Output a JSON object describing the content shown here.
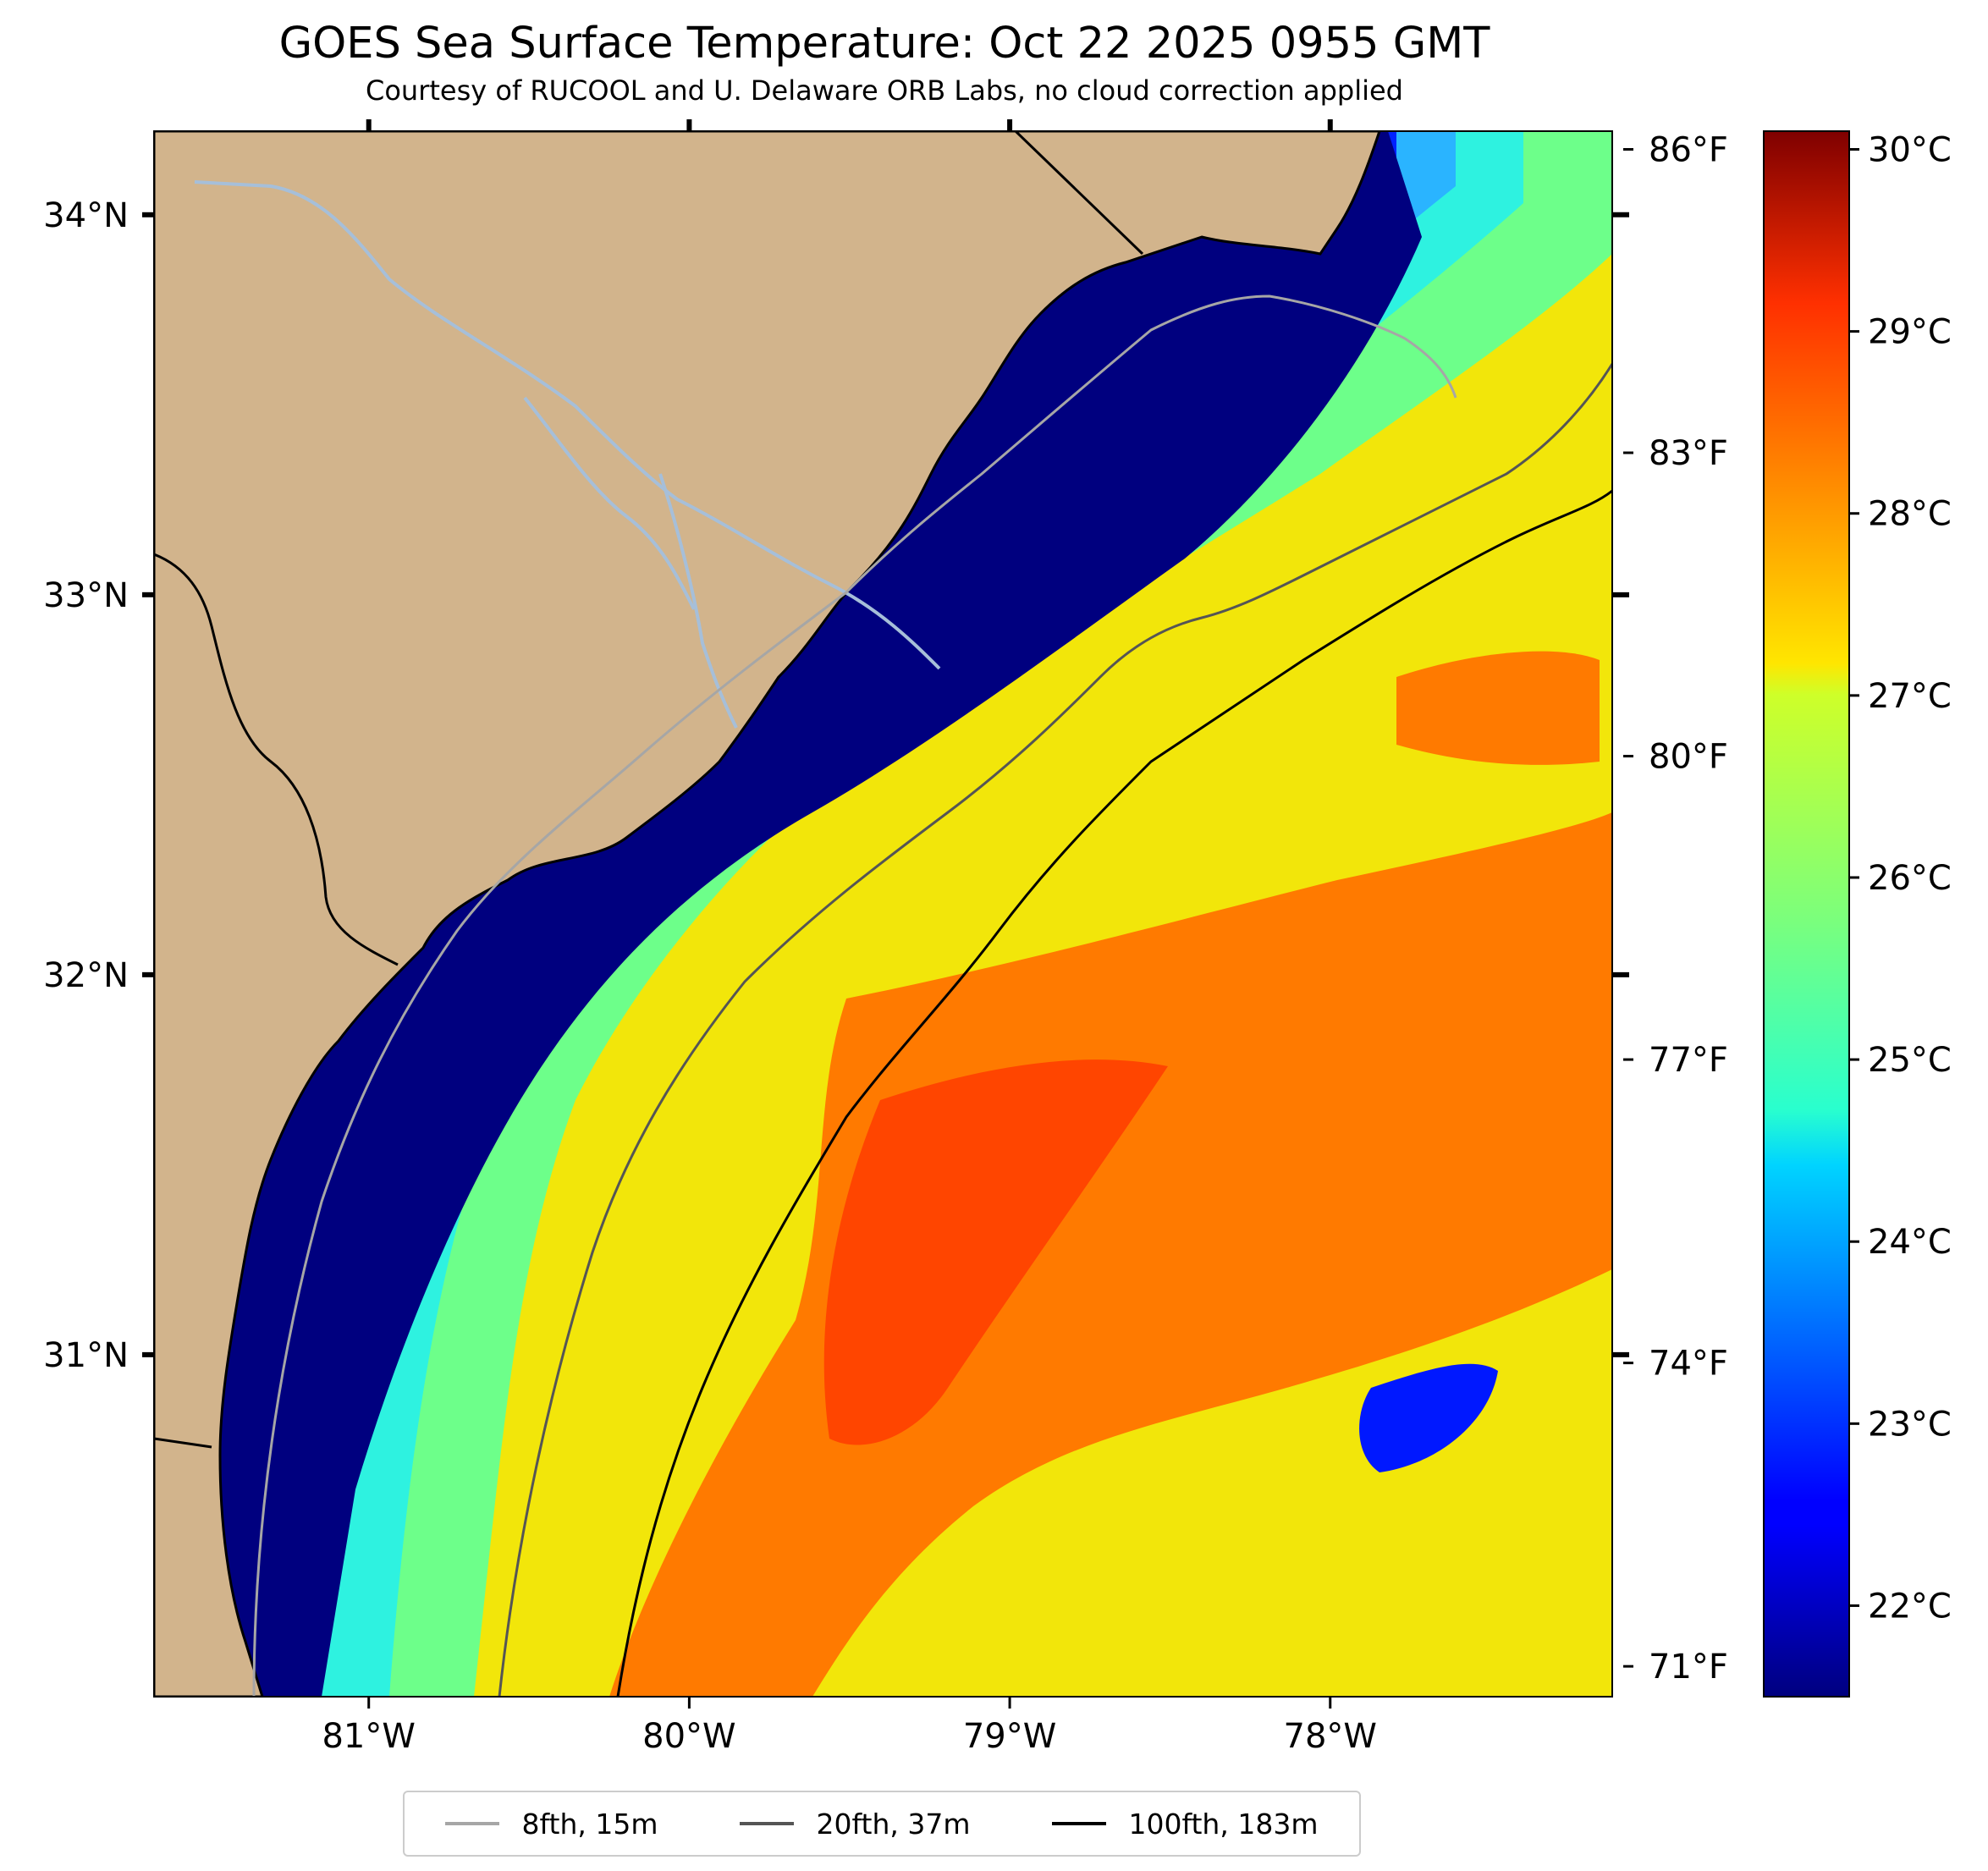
{
  "title": "GOES Sea Surface Temperature: Oct 22 2025 0955 GMT",
  "subtitle": "Courtesy of RUCOOL and U. Delaware ORB Labs, no cloud correction applied",
  "map": {
    "lon_range": [
      -81.67,
      -77.12
    ],
    "lat_range": [
      30.1,
      34.22
    ],
    "lon_ticks": [
      {
        "value": -81,
        "label": "81°W"
      },
      {
        "value": -80,
        "label": "80°W"
      },
      {
        "value": -79,
        "label": "79°W"
      },
      {
        "value": -78,
        "label": "78°W"
      }
    ],
    "lat_ticks": [
      {
        "value": 34,
        "label": "34°N"
      },
      {
        "value": 33,
        "label": "33°N"
      },
      {
        "value": 32,
        "label": "32°N"
      },
      {
        "value": 31,
        "label": "31°N"
      }
    ],
    "land_color": "#d2b48c",
    "coast_color": "#000000",
    "river_color": "#a6bfd9",
    "colormap": "jet"
  },
  "fahrenheit_ticks": [
    {
      "value": 86,
      "label": "86°F"
    },
    {
      "value": 83,
      "label": "83°F"
    },
    {
      "value": 80,
      "label": "80°F"
    },
    {
      "value": 77,
      "label": "77°F"
    },
    {
      "value": 74,
      "label": "74°F"
    },
    {
      "value": 71,
      "label": "71°F"
    }
  ],
  "colorbar": {
    "range_c": [
      21.5,
      30.1
    ],
    "ticks": [
      {
        "value": 30,
        "label": "30°C"
      },
      {
        "value": 29,
        "label": "29°C"
      },
      {
        "value": 28,
        "label": "28°C"
      },
      {
        "value": 27,
        "label": "27°C"
      },
      {
        "value": 26,
        "label": "26°C"
      },
      {
        "value": 25,
        "label": "25°C"
      },
      {
        "value": 24,
        "label": "24°C"
      },
      {
        "value": 23,
        "label": "23°C"
      },
      {
        "value": 22,
        "label": "22°C"
      }
    ]
  },
  "legend": [
    {
      "label": "8fth, 15m",
      "color": "#a6a6a6"
    },
    {
      "label": "20fth, 37m",
      "color": "#555555"
    },
    {
      "label": "100fth, 183m",
      "color": "#000000"
    }
  ]
}
